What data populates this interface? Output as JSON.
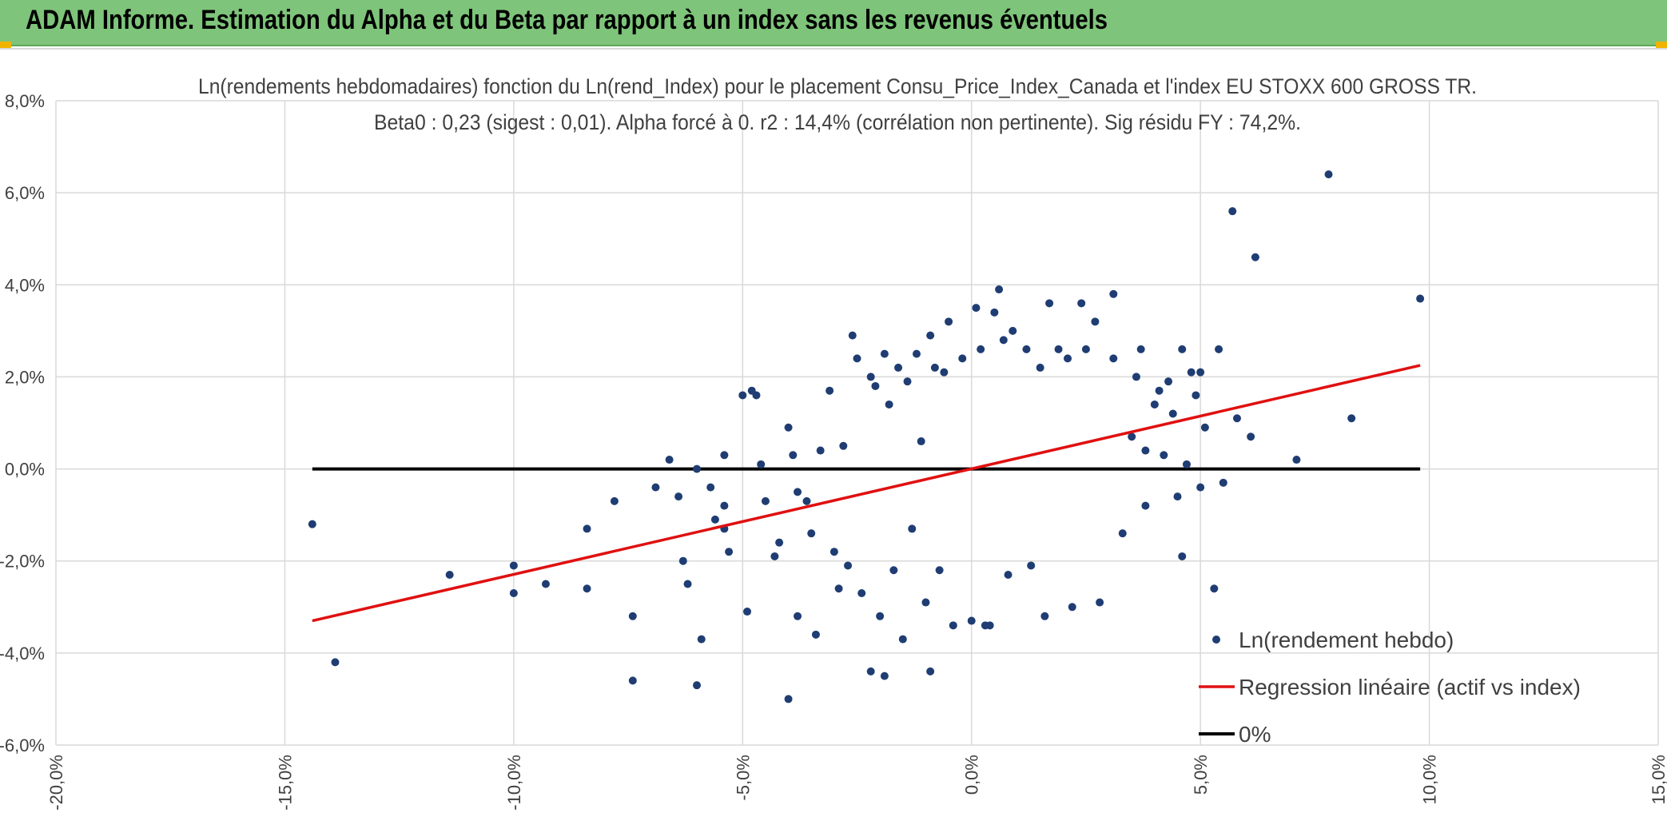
{
  "header": {
    "title": "ADAM Informe. Estimation du Alpha et du Beta par rapport à un index sans les revenus éventuels"
  },
  "colors": {
    "header_bg": "#7ec47a",
    "points": "#1f3d73",
    "regression": "#e01010",
    "zero_line": "#000000",
    "grid": "#d9d9d9"
  },
  "chart_data": {
    "type": "scatter",
    "title": "Ln(rendements hebdomadaires) fonction du Ln(rend_Index) pour le placement Consu_Price_Index_Canada et l'index EU STOXX 600 GROSS TR.",
    "subtitle": "Beta0 : 0,23 (sigest : 0,01).  Alpha forcé à 0. r2 : 14,4% (corrélation non pertinente). Sig résidu FY : 74,2%.",
    "xlim": [
      -0.2,
      0.15
    ],
    "ylim": [
      -0.06,
      0.08
    ],
    "x_ticks": [
      "-20,0%",
      "-15,0%",
      "-10,0%",
      "-5,0%",
      "0,0%",
      "5,0%",
      "10,0%",
      "15,0%"
    ],
    "y_ticks": [
      "-6,0%",
      "-4,0%",
      "-2,0%",
      "0,0%",
      "2,0%",
      "4,0%",
      "6,0%",
      "8,0%"
    ],
    "grid": true,
    "legend_position": "bottom-right",
    "series": [
      {
        "name": "Ln(rendement hebdo)",
        "kind": "scatter",
        "points": [
          [
            -0.144,
            -0.012
          ],
          [
            -0.139,
            -0.042
          ],
          [
            -0.114,
            -0.023
          ],
          [
            -0.1,
            -0.021
          ],
          [
            -0.1,
            -0.027
          ],
          [
            -0.093,
            -0.025
          ],
          [
            -0.084,
            -0.013
          ],
          [
            -0.084,
            -0.026
          ],
          [
            -0.078,
            -0.007
          ],
          [
            -0.074,
            -0.032
          ],
          [
            -0.074,
            -0.046
          ],
          [
            -0.069,
            -0.004
          ],
          [
            -0.066,
            0.002
          ],
          [
            -0.064,
            -0.006
          ],
          [
            -0.063,
            -0.02
          ],
          [
            -0.062,
            -0.025
          ],
          [
            -0.06,
            0.0
          ],
          [
            -0.06,
            -0.047
          ],
          [
            -0.059,
            -0.037
          ],
          [
            -0.057,
            -0.004
          ],
          [
            -0.056,
            -0.011
          ],
          [
            -0.054,
            -0.013
          ],
          [
            -0.054,
            -0.008
          ],
          [
            -0.054,
            0.003
          ],
          [
            -0.053,
            -0.018
          ],
          [
            -0.05,
            0.016
          ],
          [
            -0.049,
            -0.031
          ],
          [
            -0.048,
            0.017
          ],
          [
            -0.047,
            0.016
          ],
          [
            -0.046,
            0.001
          ],
          [
            -0.045,
            -0.007
          ],
          [
            -0.043,
            -0.019
          ],
          [
            -0.042,
            -0.016
          ],
          [
            -0.04,
            0.009
          ],
          [
            -0.04,
            -0.05
          ],
          [
            -0.039,
            0.003
          ],
          [
            -0.038,
            -0.005
          ],
          [
            -0.038,
            -0.032
          ],
          [
            -0.036,
            -0.007
          ],
          [
            -0.035,
            -0.014
          ],
          [
            -0.034,
            -0.036
          ],
          [
            -0.033,
            0.004
          ],
          [
            -0.031,
            0.017
          ],
          [
            -0.03,
            -0.018
          ],
          [
            -0.029,
            -0.026
          ],
          [
            -0.028,
            0.005
          ],
          [
            -0.027,
            -0.021
          ],
          [
            -0.026,
            0.029
          ],
          [
            -0.025,
            0.024
          ],
          [
            -0.024,
            -0.027
          ],
          [
            -0.022,
            0.02
          ],
          [
            -0.022,
            -0.044
          ],
          [
            -0.021,
            0.018
          ],
          [
            -0.02,
            -0.032
          ],
          [
            -0.019,
            0.025
          ],
          [
            -0.019,
            -0.045
          ],
          [
            -0.018,
            0.014
          ],
          [
            -0.017,
            -0.022
          ],
          [
            -0.016,
            0.022
          ],
          [
            -0.015,
            -0.037
          ],
          [
            -0.014,
            0.019
          ],
          [
            -0.013,
            -0.013
          ],
          [
            -0.012,
            0.025
          ],
          [
            -0.011,
            0.006
          ],
          [
            -0.01,
            -0.029
          ],
          [
            -0.009,
            0.029
          ],
          [
            -0.009,
            -0.044
          ],
          [
            -0.008,
            0.022
          ],
          [
            -0.007,
            -0.022
          ],
          [
            -0.006,
            0.021
          ],
          [
            -0.005,
            0.032
          ],
          [
            -0.004,
            -0.034
          ],
          [
            -0.002,
            0.024
          ],
          [
            0.0,
            -0.033
          ],
          [
            0.001,
            0.035
          ],
          [
            0.002,
            0.026
          ],
          [
            0.003,
            -0.034
          ],
          [
            0.004,
            -0.034
          ],
          [
            0.005,
            0.034
          ],
          [
            0.006,
            0.039
          ],
          [
            0.007,
            0.028
          ],
          [
            0.008,
            -0.023
          ],
          [
            0.009,
            0.03
          ],
          [
            0.012,
            0.026
          ],
          [
            0.013,
            -0.021
          ],
          [
            0.015,
            0.022
          ],
          [
            0.016,
            -0.032
          ],
          [
            0.017,
            0.036
          ],
          [
            0.019,
            0.026
          ],
          [
            0.021,
            0.024
          ],
          [
            0.022,
            -0.03
          ],
          [
            0.024,
            0.036
          ],
          [
            0.025,
            0.026
          ],
          [
            0.027,
            0.032
          ],
          [
            0.028,
            -0.029
          ],
          [
            0.031,
            0.038
          ],
          [
            0.031,
            0.024
          ],
          [
            0.033,
            -0.014
          ],
          [
            0.035,
            0.007
          ],
          [
            0.036,
            0.02
          ],
          [
            0.037,
            0.026
          ],
          [
            0.038,
            -0.008
          ],
          [
            0.038,
            0.004
          ],
          [
            0.04,
            0.014
          ],
          [
            0.041,
            0.017
          ],
          [
            0.042,
            0.003
          ],
          [
            0.043,
            0.019
          ],
          [
            0.044,
            0.012
          ],
          [
            0.045,
            -0.006
          ],
          [
            0.046,
            0.026
          ],
          [
            0.046,
            -0.019
          ],
          [
            0.047,
            0.001
          ],
          [
            0.048,
            0.021
          ],
          [
            0.049,
            0.016
          ],
          [
            0.05,
            0.021
          ],
          [
            0.05,
            -0.004
          ],
          [
            0.051,
            0.009
          ],
          [
            0.053,
            -0.026
          ],
          [
            0.054,
            0.026
          ],
          [
            0.055,
            -0.003
          ],
          [
            0.057,
            0.056
          ],
          [
            0.058,
            0.011
          ],
          [
            0.061,
            0.007
          ],
          [
            0.062,
            0.046
          ],
          [
            0.071,
            0.002
          ],
          [
            0.078,
            0.064
          ],
          [
            0.083,
            0.011
          ],
          [
            0.098,
            0.037
          ]
        ]
      },
      {
        "name": "Regression linéaire (actif vs index)",
        "kind": "line",
        "points": [
          [
            -0.144,
            -0.033
          ],
          [
            0.098,
            0.0225
          ]
        ]
      },
      {
        "name": "0%",
        "kind": "line",
        "points": [
          [
            -0.144,
            0.0
          ],
          [
            0.098,
            0.0
          ]
        ]
      }
    ]
  }
}
